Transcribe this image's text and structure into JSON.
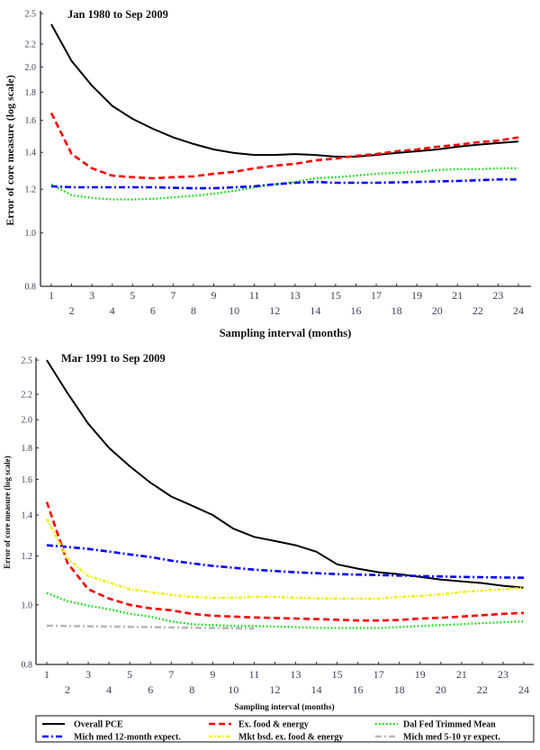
{
  "chart_data": [
    {
      "type": "line",
      "title": "Jan 1980 to Sep 2009",
      "xlabel": "Sampling interval (months)",
      "ylabel": "Error of core measure (log scale)",
      "yscale": "log",
      "xlim": [
        1,
        24
      ],
      "ylim": [
        0.8,
        2.5
      ],
      "grid": false,
      "legend": "bottom (shared)",
      "y_ticks": [
        0.8,
        1.0,
        1.2,
        1.4,
        1.6,
        1.8,
        2.0,
        2.2,
        2.5
      ],
      "y_tick_labels": [
        "0.8",
        "1.0",
        "1.2",
        "1.4",
        "1.6",
        "1.8",
        "2.0",
        "2.2",
        "2.5"
      ],
      "x_ticks": [
        1,
        2,
        3,
        4,
        5,
        6,
        7,
        8,
        9,
        10,
        11,
        12,
        13,
        14,
        15,
        16,
        17,
        18,
        19,
        20,
        21,
        22,
        23,
        24
      ],
      "x": [
        1,
        2,
        3,
        4,
        5,
        6,
        7,
        8,
        9,
        10,
        11,
        12,
        13,
        14,
        15,
        16,
        17,
        18,
        19,
        20,
        21,
        22,
        23,
        24
      ],
      "series": [
        {
          "name": "Overall PCE",
          "color": "#000000",
          "line_style": "solid",
          "values": [
            2.39,
            2.05,
            1.85,
            1.7,
            1.61,
            1.545,
            1.49,
            1.45,
            1.417,
            1.396,
            1.385,
            1.385,
            1.39,
            1.385,
            1.375,
            1.375,
            1.385,
            1.396,
            1.406,
            1.417,
            1.433,
            1.445,
            1.455,
            1.465
          ]
        },
        {
          "name": "Ex. food & energy",
          "color": "#ff0000",
          "line_style": "dashed",
          "values": [
            1.65,
            1.39,
            1.31,
            1.27,
            1.262,
            1.256,
            1.262,
            1.266,
            1.28,
            1.29,
            1.31,
            1.324,
            1.334,
            1.354,
            1.364,
            1.38,
            1.39,
            1.406,
            1.417,
            1.433,
            1.445,
            1.46,
            1.47,
            1.49
          ]
        },
        {
          "name": "Dal Fed Trimmed Mean",
          "color": "#00dd00",
          "line_style": "dotted",
          "values": [
            1.225,
            1.17,
            1.157,
            1.15,
            1.15,
            1.153,
            1.16,
            1.167,
            1.178,
            1.192,
            1.21,
            1.225,
            1.237,
            1.256,
            1.262,
            1.27,
            1.28,
            1.285,
            1.29,
            1.3,
            1.305,
            1.305,
            1.31,
            1.31
          ]
        },
        {
          "name": "Mich med 12-month expect.",
          "color": "#0000ff",
          "line_style": "dash-dot",
          "values": [
            1.215,
            1.21,
            1.21,
            1.21,
            1.21,
            1.21,
            1.207,
            1.205,
            1.205,
            1.21,
            1.215,
            1.225,
            1.233,
            1.237,
            1.233,
            1.233,
            1.233,
            1.235,
            1.237,
            1.24,
            1.242,
            1.246,
            1.25,
            1.25
          ]
        }
      ]
    },
    {
      "type": "line",
      "title": "Mar 1991 to Sep 2009",
      "xlabel": "Sampling interval (months)",
      "ylabel": "Error of core measure (log scale)",
      "yscale": "log",
      "xlim": [
        1,
        24
      ],
      "ylim": [
        0.8,
        2.5
      ],
      "grid": false,
      "legend": "bottom",
      "y_ticks": [
        0.8,
        1.0,
        1.2,
        1.4,
        1.6,
        1.8,
        2.0,
        2.2,
        2.5
      ],
      "y_tick_labels": [
        "0.8",
        "1.0",
        "1.2",
        "1.4",
        "1.6",
        "1.8",
        "2.0",
        "2.2",
        "2.5"
      ],
      "x_ticks": [
        1,
        2,
        3,
        4,
        5,
        6,
        7,
        8,
        9,
        10,
        11,
        12,
        13,
        14,
        15,
        16,
        17,
        18,
        19,
        20,
        21,
        22,
        23,
        24
      ],
      "x": [
        1,
        2,
        3,
        4,
        5,
        6,
        7,
        8,
        9,
        10,
        11,
        12,
        13,
        14,
        15,
        16,
        17,
        18,
        19,
        20,
        21,
        22,
        23,
        24
      ],
      "series": [
        {
          "name": "Overall PCE",
          "color": "#000000",
          "line_style": "solid",
          "values": [
            2.5,
            2.21,
            1.97,
            1.8,
            1.68,
            1.58,
            1.5,
            1.45,
            1.4,
            1.33,
            1.29,
            1.27,
            1.25,
            1.22,
            1.164,
            1.145,
            1.13,
            1.122,
            1.11,
            1.099,
            1.092,
            1.085,
            1.074,
            1.066
          ]
        },
        {
          "name": "Ex. food & energy",
          "color": "#ff0000",
          "line_style": "dashed",
          "values": [
            1.47,
            1.17,
            1.06,
            1.024,
            1.0,
            0.987,
            0.98,
            0.967,
            0.96,
            0.957,
            0.954,
            0.952,
            0.95,
            0.948,
            0.946,
            0.943,
            0.943,
            0.945,
            0.95,
            0.953,
            0.957,
            0.962,
            0.967,
            0.97
          ]
        },
        {
          "name": "Dal Fed Trimmed Mean",
          "color": "#00dd00",
          "line_style": "dotted",
          "values": [
            1.045,
            1.014,
            0.997,
            0.984,
            0.967,
            0.957,
            0.94,
            0.93,
            0.927,
            0.924,
            0.924,
            0.922,
            0.92,
            0.918,
            0.917,
            0.917,
            0.917,
            0.92,
            0.924,
            0.927,
            0.93,
            0.934,
            0.937,
            0.94
          ]
        },
        {
          "name": "Mich med 12-month expect.",
          "color": "#0000ff",
          "line_style": "dash-dot",
          "values": [
            1.25,
            1.242,
            1.233,
            1.221,
            1.208,
            1.196,
            1.18,
            1.168,
            1.157,
            1.149,
            1.141,
            1.135,
            1.13,
            1.126,
            1.122,
            1.12,
            1.118,
            1.116,
            1.114,
            1.112,
            1.11,
            1.109,
            1.108,
            1.107
          ]
        },
        {
          "name": "Mkt bsd. ex. food & energy",
          "color": "#f2ee00",
          "line_style": "dash-dot-dot",
          "values": [
            1.38,
            1.19,
            1.114,
            1.088,
            1.06,
            1.049,
            1.038,
            1.03,
            1.027,
            1.027,
            1.03,
            1.03,
            1.027,
            1.025,
            1.024,
            1.024,
            1.024,
            1.03,
            1.034,
            1.04,
            1.049,
            1.055,
            1.06,
            1.066
          ]
        },
        {
          "name": "Mich med 5-10 yr expect.",
          "color": "#b8b8b8",
          "line_style": "dash-dot",
          "x": [
            1,
            2,
            3,
            4,
            5,
            6,
            7,
            8,
            9,
            10,
            11
          ],
          "values": [
            0.925,
            0.924,
            0.923,
            0.922,
            0.921,
            0.92,
            0.919,
            0.918,
            0.917,
            0.916,
            0.915
          ]
        }
      ]
    }
  ],
  "legend": {
    "position": "bottom",
    "entries": [
      {
        "label": "Overall PCE",
        "color": "#000000",
        "line_style": "solid"
      },
      {
        "label": "Ex. food & energy",
        "color": "#ff0000",
        "line_style": "dashed"
      },
      {
        "label": "Dal Fed Trimmed Mean",
        "color": "#00dd00",
        "line_style": "dotted"
      },
      {
        "label": "Mich med 12-month expect.",
        "color": "#0000ff",
        "line_style": "dash-dot"
      },
      {
        "label": "Mkt bsd. ex. food & energy",
        "color": "#f2ee00",
        "line_style": "dash-dot-dot"
      },
      {
        "label": "Mich med 5-10 yr expect.",
        "color": "#b8b8b8",
        "line_style": "dash-dot"
      }
    ]
  }
}
